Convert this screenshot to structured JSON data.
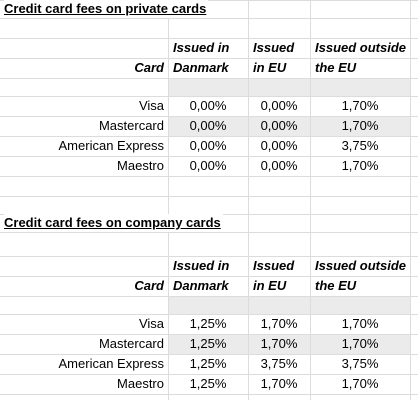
{
  "tables": [
    {
      "title": "Credit card fees on private cards",
      "columns": [
        "Card",
        "Issued in Danmark",
        "Issued in EU",
        "Issued outside the EU"
      ],
      "rows": [
        [
          "Visa",
          "0,00%",
          "0,00%",
          "1,70%"
        ],
        [
          "Mastercard",
          "0,00%",
          "0,00%",
          "1,70%"
        ],
        [
          "American Express",
          "0,00%",
          "0,00%",
          "3,75%"
        ],
        [
          "Maestro",
          "0,00%",
          "0,00%",
          "1,70%"
        ]
      ]
    },
    {
      "title": "Credit card fees on company cards",
      "columns": [
        "Card",
        "Issued in Danmark",
        "Issued in EU",
        "Issued outside the EU"
      ],
      "rows": [
        [
          "Visa",
          "1,25%",
          "1,70%",
          "1,70%"
        ],
        [
          "Mastercard",
          "1,25%",
          "1,70%",
          "1,70%"
        ],
        [
          "American Express",
          "1,25%",
          "3,75%",
          "3,75%"
        ],
        [
          "Maestro",
          "1,25%",
          "1,70%",
          "1,70%"
        ]
      ]
    }
  ]
}
